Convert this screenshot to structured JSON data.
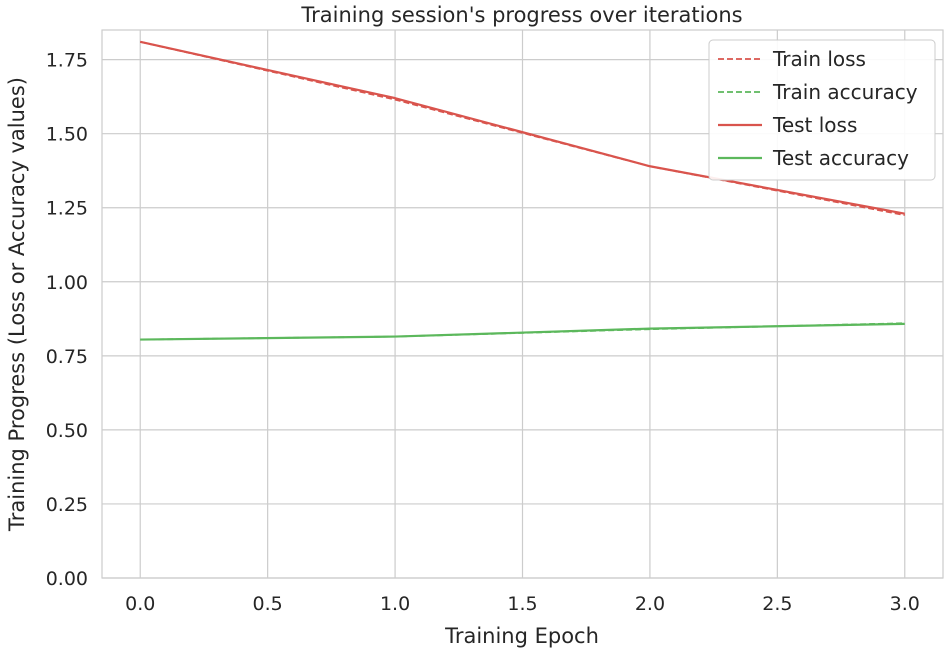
{
  "chart_data": {
    "type": "line",
    "title": "Training session's progress over iterations",
    "xlabel": "Training Epoch",
    "ylabel": "Training Progress (Loss or Accuracy values)",
    "xlim": [
      -0.15,
      3.15
    ],
    "ylim": [
      0,
      1.85
    ],
    "xticks": [
      0.0,
      0.5,
      1.0,
      1.5,
      2.0,
      2.5,
      3.0
    ],
    "xtick_labels": [
      "0.0",
      "0.5",
      "1.0",
      "1.5",
      "2.0",
      "2.5",
      "3.0"
    ],
    "yticks": [
      0.0,
      0.25,
      0.5,
      0.75,
      1.0,
      1.25,
      1.5,
      1.75
    ],
    "ytick_labels": [
      "0.00",
      "0.25",
      "0.50",
      "0.75",
      "1.00",
      "1.25",
      "1.50",
      "1.75"
    ],
    "grid": true,
    "legend_position": "top-right",
    "x": [
      0,
      1,
      2,
      3
    ],
    "series": [
      {
        "name": "Train loss",
        "values": [
          1.81,
          1.615,
          1.39,
          1.225
        ],
        "color": "#d9544d",
        "style": "dashed"
      },
      {
        "name": "Train accuracy",
        "values": [
          0.805,
          0.815,
          0.84,
          0.86
        ],
        "color": "#5cb85c",
        "style": "dashed"
      },
      {
        "name": "Test loss",
        "values": [
          1.81,
          1.62,
          1.39,
          1.23
        ],
        "color": "#d9544d",
        "style": "solid"
      },
      {
        "name": "Test accuracy",
        "values": [
          0.805,
          0.815,
          0.842,
          0.858
        ],
        "color": "#5cb85c",
        "style": "solid"
      }
    ]
  }
}
